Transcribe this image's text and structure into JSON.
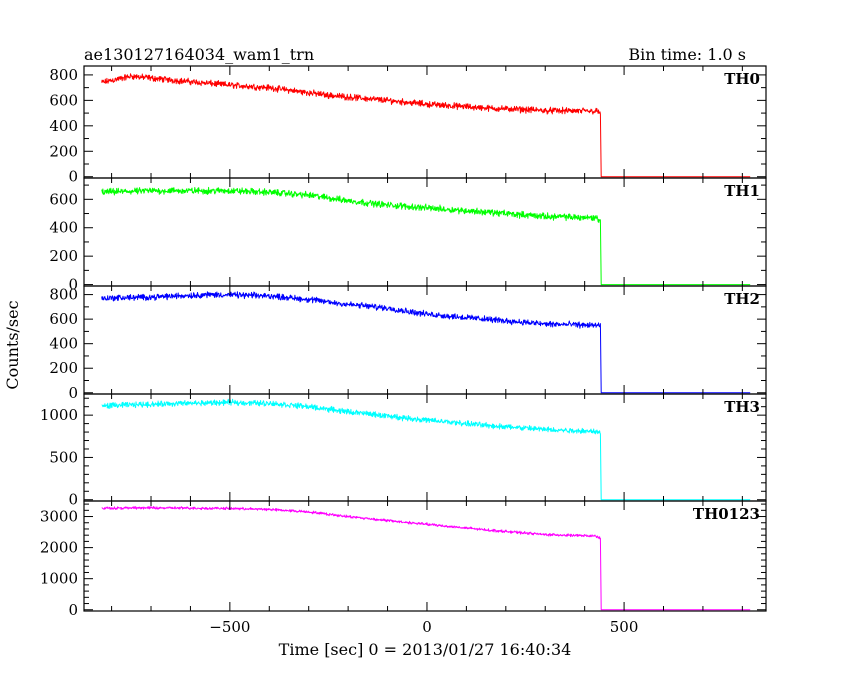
{
  "header": {
    "title": "ae130127164034_wam1_trn",
    "bin_time": "Bin time: 1.0 s"
  },
  "chart_data": {
    "type": "line",
    "xlabel": "Time [sec] 0 = 2013/01/27 16:40:34",
    "ylabel": "Counts/sec",
    "xlim": [
      -870,
      860
    ],
    "xticks": [
      -500,
      0,
      500
    ],
    "xtick_labels": [
      "−500",
      "0",
      "500"
    ],
    "grid": false,
    "panels": [
      {
        "name": "TH0",
        "color": "#ff0000",
        "ylim": [
          -10,
          870
        ],
        "yticks": [
          0,
          200,
          400,
          600,
          800
        ],
        "noise": 30,
        "series": [
          [
            -825,
            740
          ],
          [
            -750,
            790
          ],
          [
            -650,
            760
          ],
          [
            -500,
            720
          ],
          [
            -400,
            700
          ],
          [
            -250,
            640
          ],
          [
            -100,
            600
          ],
          [
            0,
            570
          ],
          [
            150,
            540
          ],
          [
            300,
            520
          ],
          [
            430,
            515
          ],
          [
            440,
            500
          ],
          [
            442,
            0
          ],
          [
            820,
            0
          ]
        ]
      },
      {
        "name": "TH1",
        "color": "#00ff00",
        "ylim": [
          -10,
          750
        ],
        "yticks": [
          0,
          200,
          400,
          600
        ],
        "noise": 28,
        "series": [
          [
            -825,
            650
          ],
          [
            -700,
            660
          ],
          [
            -500,
            660
          ],
          [
            -400,
            650
          ],
          [
            -300,
            630
          ],
          [
            -200,
            590
          ],
          [
            -100,
            560
          ],
          [
            0,
            540
          ],
          [
            150,
            510
          ],
          [
            300,
            480
          ],
          [
            430,
            470
          ],
          [
            440,
            450
          ],
          [
            442,
            0
          ],
          [
            820,
            0
          ]
        ]
      },
      {
        "name": "TH2",
        "color": "#0000ff",
        "ylim": [
          -10,
          870
        ],
        "yticks": [
          0,
          200,
          400,
          600,
          800
        ],
        "noise": 30,
        "series": [
          [
            -825,
            770
          ],
          [
            -700,
            780
          ],
          [
            -550,
            800
          ],
          [
            -400,
            790
          ],
          [
            -300,
            760
          ],
          [
            -200,
            720
          ],
          [
            -100,
            690
          ],
          [
            0,
            640
          ],
          [
            150,
            600
          ],
          [
            300,
            560
          ],
          [
            430,
            550
          ],
          [
            440,
            540
          ],
          [
            442,
            0
          ],
          [
            820,
            0
          ]
        ]
      },
      {
        "name": "TH3",
        "color": "#00ffff",
        "ylim": [
          -15,
          1250
        ],
        "yticks": [
          0,
          500,
          1000
        ],
        "noise": 40,
        "series": [
          [
            -825,
            1110
          ],
          [
            -700,
            1130
          ],
          [
            -500,
            1150
          ],
          [
            -400,
            1140
          ],
          [
            -300,
            1100
          ],
          [
            -200,
            1040
          ],
          [
            -100,
            990
          ],
          [
            0,
            940
          ],
          [
            150,
            880
          ],
          [
            300,
            830
          ],
          [
            430,
            810
          ],
          [
            440,
            780
          ],
          [
            442,
            0
          ],
          [
            820,
            0
          ]
        ]
      },
      {
        "name": "TH0123",
        "color": "#ff00ff",
        "ylim": [
          -40,
          3500
        ],
        "yticks": [
          0,
          1000,
          2000,
          3000
        ],
        "noise": 50,
        "series": [
          [
            -825,
            3270
          ],
          [
            -700,
            3280
          ],
          [
            -500,
            3260
          ],
          [
            -400,
            3230
          ],
          [
            -300,
            3150
          ],
          [
            -200,
            3000
          ],
          [
            -100,
            2870
          ],
          [
            0,
            2750
          ],
          [
            150,
            2570
          ],
          [
            300,
            2420
          ],
          [
            430,
            2370
          ],
          [
            440,
            2300
          ],
          [
            442,
            0
          ],
          [
            820,
            0
          ]
        ]
      }
    ]
  }
}
